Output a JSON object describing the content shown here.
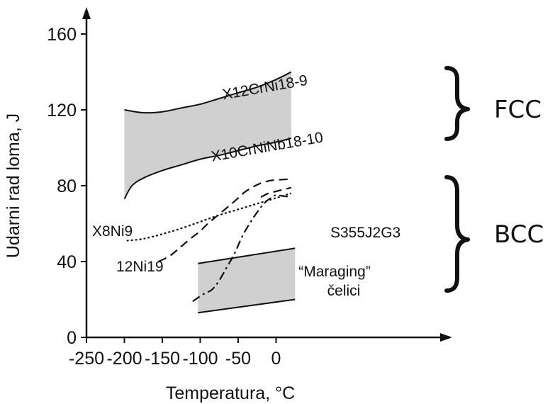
{
  "chart_data": {
    "type": "line",
    "xlabel": "Temperatura, °C",
    "ylabel": "Udarni rad loma, J",
    "xlim": [
      -250,
      30
    ],
    "ylim": [
      0,
      170
    ],
    "xticks": [
      -250,
      -200,
      -150,
      -100,
      -50,
      0
    ],
    "yticks": [
      0,
      40,
      80,
      120,
      160
    ],
    "xtick_labels": [
      "-250",
      "-200",
      "-150",
      "-100",
      "-50",
      "0"
    ],
    "ytick_labels": [
      "0",
      "40",
      "80",
      "120",
      "160"
    ],
    "grid": false,
    "band_color": "#d0d0d0",
    "bands": [
      {
        "upper_label": "X12CrNi18-9",
        "lower_label": "X10CrNiNb18-10",
        "upper": {
          "x": [
            -200,
            -175,
            -150,
            -125,
            -100,
            -75,
            -50,
            -25,
            0,
            20
          ],
          "y": [
            120,
            118.5,
            119,
            121,
            123,
            126,
            129,
            132,
            136,
            140
          ]
        },
        "lower": {
          "x": [
            -200,
            -190,
            -175,
            -150,
            -125,
            -100,
            -75,
            -50,
            -25,
            0,
            20
          ],
          "y": [
            73,
            80,
            84,
            88,
            91,
            94,
            96,
            98.5,
            101,
            103,
            105
          ]
        }
      },
      {
        "label_lines": [
          "“Maraging”",
          "čelici"
        ],
        "upper": {
          "x": [
            -103,
            25
          ],
          "y": [
            39,
            47
          ]
        },
        "lower": {
          "x": [
            -103,
            25
          ],
          "y": [
            13,
            20
          ]
        }
      }
    ],
    "series": [
      {
        "name": "X8Ni9",
        "style": "dotted",
        "x": [
          -197,
          -175,
          -150,
          -125,
          -100,
          -75,
          -50,
          -25,
          0,
          20
        ],
        "y": [
          51,
          52,
          54.5,
          57.5,
          61,
          64.5,
          67.5,
          70.5,
          73.5,
          76
        ]
      },
      {
        "name": "12Ni19",
        "style": "dashed",
        "x": [
          -155,
          -140,
          -125,
          -110,
          -100,
          -90,
          -75,
          -60,
          -50,
          -40,
          -25,
          -10,
          0,
          20
        ],
        "y": [
          40,
          43,
          48,
          53,
          56,
          60,
          65,
          70,
          73.5,
          77,
          80.5,
          82.5,
          83,
          83.5
        ]
      },
      {
        "name": "S355J2G3",
        "style": "dashdot",
        "x": [
          -110,
          -95,
          -85,
          -75,
          -65,
          -55,
          -45,
          -35,
          -25,
          -15,
          -5,
          0,
          10,
          20
        ],
        "y": [
          19,
          23,
          25,
          30,
          37,
          44,
          53,
          60,
          66,
          71,
          74,
          75,
          74.5,
          74
        ]
      }
    ],
    "extra_series": [
      {
        "style": "dashed",
        "x": [
          -20,
          -10,
          0,
          10,
          20
        ],
        "y": [
          74,
          76,
          77,
          78,
          79
        ]
      }
    ]
  },
  "annotations": {
    "fcc": "FCC",
    "bcc": "BCC"
  }
}
